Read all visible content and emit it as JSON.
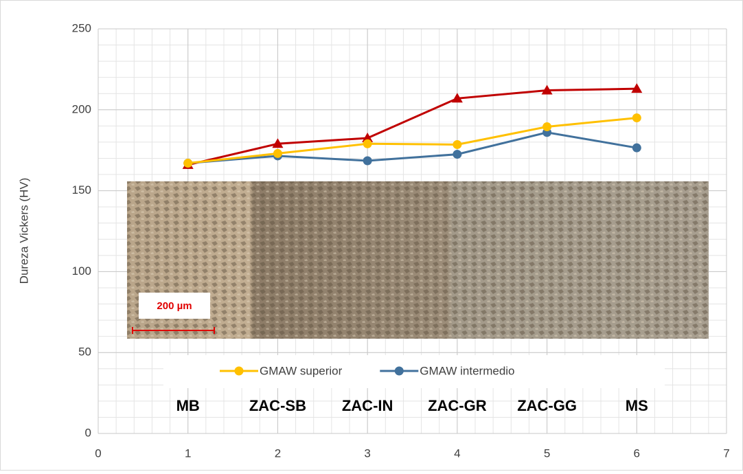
{
  "chart_data": {
    "type": "line",
    "y_label": "Dureza Vickers (HV)",
    "xlim": [
      0,
      7
    ],
    "xticks": [
      0,
      1,
      2,
      3,
      4,
      5,
      6,
      7
    ],
    "ylim": [
      0,
      250
    ],
    "yticks": [
      0,
      50,
      100,
      150,
      200,
      250
    ],
    "grid": true,
    "legend": "bottom",
    "x": [
      1,
      2,
      3,
      4,
      5,
      6
    ],
    "series": [
      {
        "name": "GMAW superior",
        "color": "#ffc000",
        "marker": "circle",
        "values": [
          167,
          173,
          179,
          178.5,
          189.5,
          195
        ]
      },
      {
        "name": "GMAW intermedio",
        "color": "#41719c",
        "marker": "circle",
        "values": [
          167,
          171.5,
          168.5,
          172.5,
          186,
          176.5
        ]
      },
      {
        "color": "#c00000",
        "marker": "triangle",
        "values": [
          166,
          179,
          182.5,
          207,
          212,
          213
        ]
      }
    ],
    "annotations": [
      "MB",
      "ZAC-SB",
      "ZAC-IN",
      "ZAC-GR",
      "ZAC-GG",
      "MS"
    ],
    "scale_bar": "200 µm"
  }
}
